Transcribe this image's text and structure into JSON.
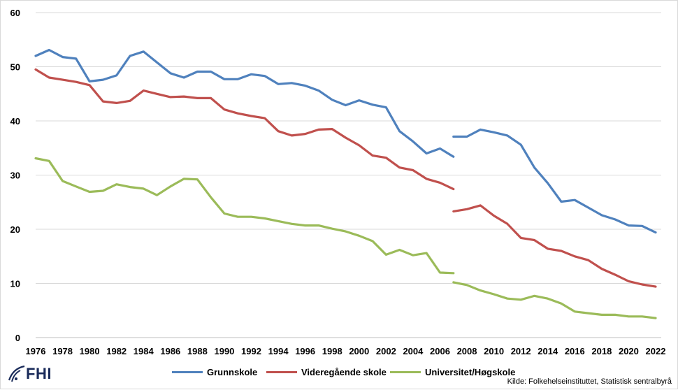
{
  "chart_data": {
    "type": "line",
    "title": "",
    "xlabel": "",
    "ylabel": "",
    "ylim": [
      0,
      60
    ],
    "yticks": [
      0,
      10,
      20,
      30,
      40,
      50,
      60
    ],
    "xlim": [
      1976,
      2022
    ],
    "xticks": [
      1976,
      1978,
      1980,
      1982,
      1984,
      1986,
      1988,
      1990,
      1992,
      1994,
      1996,
      1998,
      2000,
      2002,
      2004,
      2006,
      2008,
      2010,
      2012,
      2014,
      2016,
      2018,
      2020,
      2022
    ],
    "grid": "horizontal",
    "legend_position": "bottom",
    "series": [
      {
        "name": "Grunnskole",
        "color": "#4f81bd",
        "segments": [
          {
            "x": [
              1976,
              1977,
              1978,
              1979,
              1980,
              1981,
              1982,
              1983,
              1984,
              1985,
              1986,
              1987,
              1988,
              1989,
              1990,
              1991,
              1992,
              1993,
              1994,
              1995,
              1996,
              1997,
              1998,
              1999,
              2000,
              2001,
              2002,
              2003,
              2004,
              2005,
              2006,
              2007
            ],
            "y": [
              52.0,
              53.1,
              51.8,
              51.5,
              47.3,
              47.6,
              48.4,
              52.0,
              52.8,
              50.8,
              48.8,
              48.0,
              49.1,
              49.1,
              47.7,
              47.7,
              48.6,
              48.3,
              46.8,
              47.0,
              46.5,
              45.6,
              43.9,
              42.9,
              43.8,
              43.0,
              42.5,
              38.1,
              36.2,
              34.0,
              34.9,
              33.4
            ]
          },
          {
            "x": [
              2007,
              2008,
              2009,
              2010,
              2011,
              2012,
              2013,
              2014,
              2015,
              2016,
              2017,
              2018,
              2019,
              2020,
              2021,
              2022
            ],
            "y": [
              37.1,
              37.1,
              38.4,
              37.9,
              37.3,
              35.6,
              31.4,
              28.5,
              25.1,
              25.4,
              24.0,
              22.6,
              21.8,
              20.7,
              20.6,
              19.4
            ]
          }
        ]
      },
      {
        "name": "Videregående skole",
        "color": "#c0504d",
        "segments": [
          {
            "x": [
              1976,
              1977,
              1978,
              1979,
              1980,
              1981,
              1982,
              1983,
              1984,
              1985,
              1986,
              1987,
              1988,
              1989,
              1990,
              1991,
              1992,
              1993,
              1994,
              1995,
              1996,
              1997,
              1998,
              1999,
              2000,
              2001,
              2002,
              2003,
              2004,
              2005,
              2006,
              2007
            ],
            "y": [
              49.5,
              48.0,
              47.6,
              47.2,
              46.6,
              43.6,
              43.3,
              43.7,
              45.6,
              45.0,
              44.4,
              44.5,
              44.2,
              44.2,
              42.1,
              41.4,
              40.9,
              40.5,
              38.1,
              37.3,
              37.6,
              38.4,
              38.5,
              36.9,
              35.5,
              33.6,
              33.2,
              31.4,
              30.9,
              29.3,
              28.6,
              27.4
            ]
          },
          {
            "x": [
              2007,
              2008,
              2009,
              2010,
              2011,
              2012,
              2013,
              2014,
              2015,
              2016,
              2017,
              2018,
              2019,
              2020,
              2021,
              2022
            ],
            "y": [
              23.3,
              23.7,
              24.4,
              22.5,
              21.0,
              18.4,
              18.0,
              16.4,
              16.0,
              15.0,
              14.3,
              12.7,
              11.6,
              10.4,
              9.8,
              9.4
            ]
          }
        ]
      },
      {
        "name": "Universitet/Høgskole",
        "color": "#9bbb59",
        "segments": [
          {
            "x": [
              1976,
              1977,
              1978,
              1979,
              1980,
              1981,
              1982,
              1983,
              1984,
              1985,
              1986,
              1987,
              1988,
              1989,
              1990,
              1991,
              1992,
              1993,
              1994,
              1995,
              1996,
              1997,
              1998,
              1999,
              2000,
              2001,
              2002,
              2003,
              2004,
              2005,
              2006,
              2007
            ],
            "y": [
              33.1,
              32.6,
              28.9,
              27.9,
              26.9,
              27.1,
              28.3,
              27.8,
              27.5,
              26.3,
              27.9,
              29.3,
              29.2,
              25.9,
              22.9,
              22.3,
              22.3,
              22.0,
              21.5,
              21.0,
              20.7,
              20.7,
              20.1,
              19.6,
              18.8,
              17.8,
              15.3,
              16.2,
              15.2,
              15.6,
              12.0,
              11.9
            ]
          },
          {
            "x": [
              2007,
              2008,
              2009,
              2010,
              2011,
              2012,
              2013,
              2014,
              2015,
              2016,
              2017,
              2018,
              2019,
              2020,
              2021,
              2022
            ],
            "y": [
              10.2,
              9.7,
              8.7,
              8.0,
              7.2,
              7.0,
              7.7,
              7.2,
              6.3,
              4.8,
              4.5,
              4.2,
              4.2,
              3.9,
              3.9,
              3.6
            ]
          }
        ]
      }
    ]
  },
  "logo": {
    "text": "FHI"
  },
  "source": "Kilde: Folkehelseinstituttet, Statistisk sentralbyrå"
}
